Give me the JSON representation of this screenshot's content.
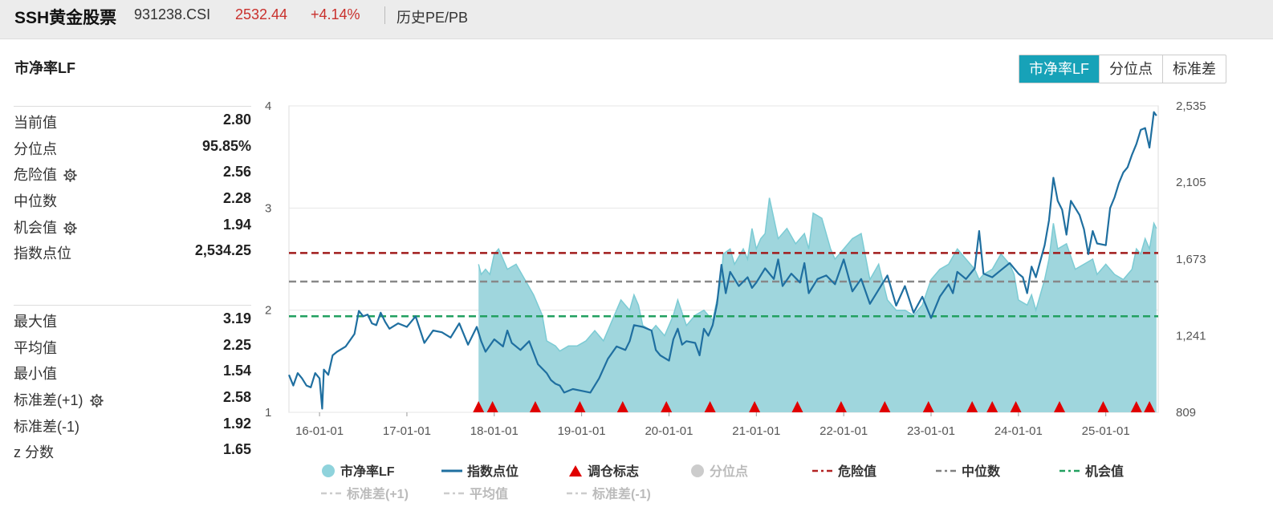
{
  "header": {
    "title": "SSH黄金股票",
    "code": "931238.CSI",
    "price": "2532.44",
    "change": "+4.14%",
    "nav": "历史PE/PB"
  },
  "metric_title": "市净率LF",
  "tabs": [
    {
      "label": "市净率LF",
      "active": true
    },
    {
      "label": "分位点",
      "active": false
    },
    {
      "label": "标准差",
      "active": false
    }
  ],
  "stats_top": [
    {
      "label": "当前值",
      "value": "2.80",
      "gear": false
    },
    {
      "label": "分位点",
      "value": "95.85%",
      "gear": false
    },
    {
      "label": "危险值",
      "value": "2.56",
      "gear": true
    },
    {
      "label": "中位数",
      "value": "2.28",
      "gear": false
    },
    {
      "label": "机会值",
      "value": "1.94",
      "gear": true
    },
    {
      "label": "指数点位",
      "value": "2,534.25",
      "gear": false
    }
  ],
  "stats_bottom": [
    {
      "label": "最大值",
      "value": "3.19",
      "gear": false
    },
    {
      "label": "平均值",
      "value": "2.25",
      "gear": false
    },
    {
      "label": "最小值",
      "value": "1.54",
      "gear": false
    },
    {
      "label": "标准差(+1)",
      "value": "2.58",
      "gear": true
    },
    {
      "label": "标准差(-1)",
      "value": "1.92",
      "gear": false
    },
    {
      "label": "z 分数",
      "value": "1.65",
      "gear": false
    }
  ],
  "legend": [
    {
      "label": "市净率LF",
      "type": "circle",
      "color": "#8fd3dc",
      "dim": false
    },
    {
      "label": "指数点位",
      "type": "line",
      "color": "#1f6fa0",
      "dim": false
    },
    {
      "label": "调仓标志",
      "type": "triangle",
      "color": "#e00000",
      "dim": false
    },
    {
      "label": "分位点",
      "type": "circle",
      "color": "#cccccc",
      "dim": true
    },
    {
      "label": "危险值",
      "type": "dash",
      "color": "#b22222",
      "dim": false
    },
    {
      "label": "中位数",
      "type": "dash",
      "color": "#808080",
      "dim": false
    },
    {
      "label": "机会值",
      "type": "dash",
      "color": "#22a060",
      "dim": false
    },
    {
      "label": "标准差(+1)",
      "type": "dash",
      "color": "#cccccc",
      "dim": true
    },
    {
      "label": "平均值",
      "type": "dash",
      "color": "#cccccc",
      "dim": true
    },
    {
      "label": "标准差(-1)",
      "type": "dash",
      "color": "#cccccc",
      "dim": true
    }
  ],
  "chart_data": {
    "type": "line",
    "x_ticks": [
      "16-01-01",
      "17-01-01",
      "18-01-01",
      "19-01-01",
      "20-01-01",
      "21-01-01",
      "22-01-01",
      "23-01-01",
      "24-01-01",
      "25-01-01"
    ],
    "x_range": [
      2015.65,
      2025.6
    ],
    "y_left": {
      "range": [
        1,
        4
      ],
      "ticks": [
        "1",
        "2",
        "3",
        "4"
      ]
    },
    "y_right": {
      "range": [
        809,
        2535
      ],
      "ticks": [
        "809",
        "1,241",
        "1,673",
        "2,105",
        "2,535"
      ]
    },
    "reference_lines": {
      "danger": 2.56,
      "median": 2.28,
      "opportunity": 1.94
    },
    "colors": {
      "pb_fill": "#9fd6dd",
      "pb_line": "#7ccbd4",
      "index": "#1f6fa0",
      "danger": "#a01c1c",
      "median": "#888888",
      "opportunity": "#22a060",
      "marker": "#e00000",
      "grid": "#e6e6e6"
    },
    "series": [
      {
        "name": "市净率LF",
        "x": [
          2017.82,
          2017.85,
          2017.9,
          2017.95,
          2018.0,
          2018.05,
          2018.1,
          2018.15,
          2018.25,
          2018.35,
          2018.45,
          2018.55,
          2018.6,
          2018.7,
          2018.75,
          2018.85,
          2018.95,
          2019.05,
          2019.15,
          2019.25,
          2019.35,
          2019.45,
          2019.55,
          2019.6,
          2019.65,
          2019.7,
          2019.8,
          2019.85,
          2019.95,
          2020.05,
          2020.1,
          2020.2,
          2020.3,
          2020.4,
          2020.5,
          2020.55,
          2020.6,
          2020.62,
          2020.7,
          2020.75,
          2020.85,
          2020.9,
          2020.95,
          2021.0,
          2021.05,
          2021.1,
          2021.15,
          2021.25,
          2021.35,
          2021.45,
          2021.55,
          2021.6,
          2021.65,
          2021.75,
          2021.85,
          2021.9,
          2022.0,
          2022.1,
          2022.2,
          2022.3,
          2022.4,
          2022.5,
          2022.6,
          2022.7,
          2022.8,
          2022.9,
          2023.0,
          2023.1,
          2023.2,
          2023.3,
          2023.4,
          2023.5,
          2023.55,
          2023.6,
          2023.7,
          2023.8,
          2023.9,
          2023.95,
          2024.0,
          2024.1,
          2024.15,
          2024.2,
          2024.3,
          2024.35,
          2024.4,
          2024.45,
          2024.55,
          2024.65,
          2024.75,
          2024.85,
          2024.9,
          2025.0,
          2025.1,
          2025.2,
          2025.3,
          2025.35,
          2025.4,
          2025.45,
          2025.5,
          2025.55,
          2025.58
        ],
        "values": [
          2.45,
          2.35,
          2.4,
          2.35,
          2.55,
          2.6,
          2.5,
          2.4,
          2.45,
          2.3,
          2.15,
          1.95,
          1.7,
          1.65,
          1.6,
          1.65,
          1.65,
          1.7,
          1.8,
          1.7,
          1.9,
          2.1,
          2.0,
          2.15,
          2.05,
          1.85,
          1.8,
          1.85,
          1.75,
          1.95,
          2.1,
          1.85,
          1.95,
          2.0,
          1.9,
          2.1,
          2.3,
          2.55,
          2.6,
          2.45,
          2.6,
          2.5,
          2.8,
          2.6,
          2.7,
          2.75,
          3.1,
          2.7,
          2.8,
          2.65,
          2.75,
          2.6,
          2.95,
          2.9,
          2.6,
          2.5,
          2.6,
          2.7,
          2.75,
          2.3,
          2.45,
          2.1,
          2.0,
          2.0,
          1.95,
          2.05,
          2.3,
          2.4,
          2.45,
          2.6,
          2.5,
          2.4,
          2.3,
          2.35,
          2.4,
          2.55,
          2.45,
          2.35,
          2.1,
          2.05,
          2.15,
          2.0,
          2.3,
          2.5,
          2.85,
          2.6,
          2.65,
          2.4,
          2.45,
          2.5,
          2.35,
          2.45,
          2.35,
          2.3,
          2.4,
          2.6,
          2.55,
          2.7,
          2.6,
          2.85,
          2.8
        ]
      },
      {
        "name": "指数点位",
        "x": [
          2015.65,
          2015.7,
          2015.75,
          2015.8,
          2015.85,
          2015.9,
          2015.95,
          2016.0,
          2016.03,
          2016.05,
          2016.1,
          2016.15,
          2016.2,
          2016.3,
          2016.4,
          2016.45,
          2016.5,
          2016.55,
          2016.6,
          2016.65,
          2016.7,
          2016.75,
          2016.8,
          2016.9,
          2017.0,
          2017.1,
          2017.2,
          2017.3,
          2017.4,
          2017.5,
          2017.6,
          2017.7,
          2017.8,
          2017.85,
          2017.9,
          2018.0,
          2018.1,
          2018.15,
          2018.2,
          2018.3,
          2018.4,
          2018.5,
          2018.6,
          2018.65,
          2018.7,
          2018.75,
          2018.8,
          2018.9,
          2019.0,
          2019.1,
          2019.2,
          2019.3,
          2019.4,
          2019.5,
          2019.55,
          2019.6,
          2019.7,
          2019.8,
          2019.85,
          2019.9,
          2020.0,
          2020.05,
          2020.1,
          2020.15,
          2020.2,
          2020.3,
          2020.35,
          2020.4,
          2020.45,
          2020.5,
          2020.55,
          2020.6,
          2020.65,
          2020.7,
          2020.8,
          2020.9,
          2020.95,
          2021.0,
          2021.1,
          2021.2,
          2021.25,
          2021.3,
          2021.4,
          2021.5,
          2021.55,
          2021.6,
          2021.7,
          2021.8,
          2021.9,
          2022.0,
          2022.1,
          2022.2,
          2022.3,
          2022.4,
          2022.5,
          2022.6,
          2022.7,
          2022.8,
          2022.9,
          2023.0,
          2023.1,
          2023.2,
          2023.25,
          2023.3,
          2023.4,
          2023.5,
          2023.55,
          2023.6,
          2023.7,
          2023.8,
          2023.9,
          2024.0,
          2024.05,
          2024.1,
          2024.15,
          2024.2,
          2024.3,
          2024.35,
          2024.4,
          2024.45,
          2024.5,
          2024.55,
          2024.6,
          2024.7,
          2024.75,
          2024.8,
          2024.85,
          2024.9,
          2025.0,
          2025.05,
          2025.1,
          2025.15,
          2025.2,
          2025.25,
          2025.3,
          2025.35,
          2025.4,
          2025.45,
          2025.5,
          2025.55,
          2025.58
        ],
        "values": [
          1020,
          960,
          1030,
          1000,
          960,
          950,
          1030,
          1000,
          830,
          1050,
          1020,
          1130,
          1150,
          1180,
          1250,
          1380,
          1350,
          1360,
          1310,
          1300,
          1370,
          1320,
          1280,
          1310,
          1290,
          1350,
          1200,
          1270,
          1260,
          1230,
          1310,
          1190,
          1290,
          1210,
          1150,
          1220,
          1180,
          1270,
          1200,
          1160,
          1210,
          1080,
          1030,
          990,
          970,
          960,
          920,
          940,
          930,
          920,
          1000,
          1110,
          1180,
          1160,
          1210,
          1300,
          1290,
          1270,
          1160,
          1130,
          1100,
          1220,
          1280,
          1190,
          1210,
          1200,
          1130,
          1280,
          1240,
          1300,
          1420,
          1640,
          1480,
          1600,
          1520,
          1570,
          1510,
          1540,
          1620,
          1560,
          1670,
          1520,
          1590,
          1540,
          1650,
          1480,
          1560,
          1580,
          1530,
          1670,
          1490,
          1560,
          1420,
          1500,
          1580,
          1410,
          1520,
          1370,
          1460,
          1340,
          1460,
          1530,
          1480,
          1600,
          1560,
          1620,
          1830,
          1590,
          1570,
          1610,
          1650,
          1590,
          1570,
          1480,
          1630,
          1570,
          1750,
          1890,
          2130,
          2000,
          1950,
          1810,
          2000,
          1920,
          1840,
          1700,
          1830,
          1760,
          1750,
          1960,
          2020,
          2100,
          2160,
          2190,
          2260,
          2320,
          2400,
          2410,
          2300,
          2500,
          2480
        ]
      }
    ],
    "rebalance_markers_x": [
      2017.82,
      2017.98,
      2018.47,
      2018.98,
      2019.47,
      2019.97,
      2020.47,
      2020.98,
      2021.47,
      2021.97,
      2022.47,
      2022.97,
      2023.47,
      2023.7,
      2023.97,
      2024.47,
      2024.97,
      2025.35,
      2025.5
    ]
  }
}
